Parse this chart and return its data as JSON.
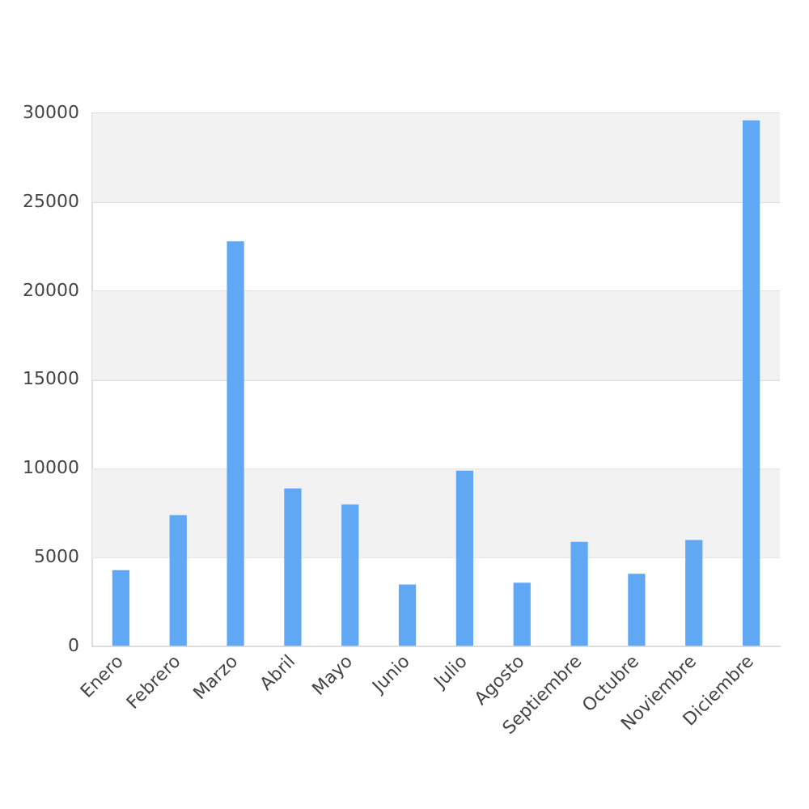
{
  "chart_data": {
    "type": "bar",
    "categories": [
      "Enero",
      "Febrero",
      "Marzo",
      "Abril",
      "Mayo",
      "Junio",
      "Julio",
      "Agosto",
      "Septiembre",
      "Octubre",
      "Noviembre",
      "Diciembre"
    ],
    "values": [
      4300,
      7400,
      22800,
      8900,
      8000,
      3500,
      9900,
      3600,
      5900,
      4100,
      6000,
      29600
    ],
    "color": "#60a8f4",
    "ylim": [
      0,
      30000
    ],
    "yticks": [
      0,
      5000,
      10000,
      15000,
      20000,
      25000,
      30000
    ],
    "grid": "y",
    "bands": [
      {
        "axis": "y",
        "from": 5000,
        "to": 10000,
        "color": "#f2f2f2"
      },
      {
        "axis": "y",
        "from": 15000,
        "to": 20000,
        "color": "#f2f2f2"
      },
      {
        "axis": "y",
        "from": 25000,
        "to": 30000,
        "color": "#f2f2f2"
      }
    ]
  }
}
